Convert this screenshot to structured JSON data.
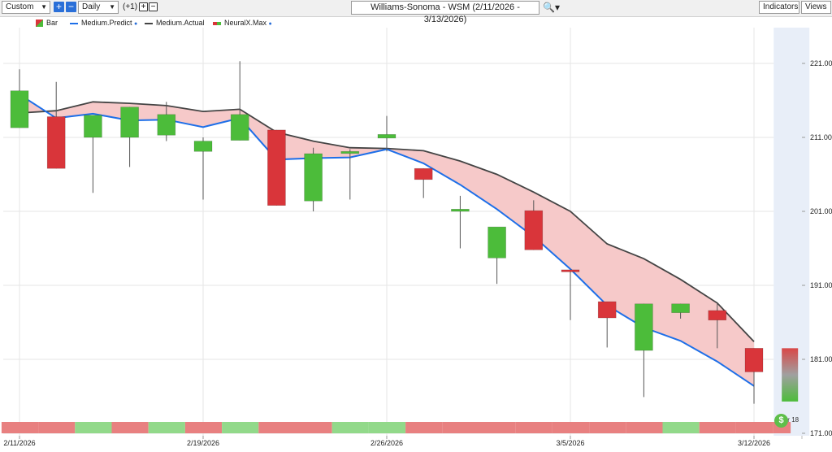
{
  "toolbar": {
    "range_select": "Custom",
    "interval_select": "Daily",
    "offset_label": "(+1)",
    "title": "Williams-Sonoma - WSM (2/11/2026 - 3/13/2026)",
    "indicators_label": "Indicators",
    "views_label": "Views"
  },
  "legend": {
    "items": [
      {
        "label": "Bar",
        "color": "#d9353a"
      },
      {
        "label": "Medium.Predict",
        "color": "#1e6fe8"
      },
      {
        "label": "Medium.Actual",
        "color": "#444444"
      },
      {
        "label": "NeuralX.Max",
        "color": "#e06060"
      }
    ]
  },
  "colors": {
    "up": "#4cbc3a",
    "down": "#d9353a",
    "predict": "#1e6fe8",
    "actual": "#444444",
    "band": "#f6c9c9",
    "up_strip": "#92d98a",
    "down_strip": "#e88080",
    "forecast_area": "#e8eef8"
  },
  "chart_data": {
    "type": "candlestick",
    "title": "Williams-Sonoma - WSM (2/11/2026 - 3/13/2026)",
    "ylim": [
      171,
      224
    ],
    "y_ticks": [
      171,
      181,
      191,
      201,
      211,
      221
    ],
    "y_tick_labels": [
      "171.00",
      "181.00",
      "191.00",
      "201.00",
      "211.00",
      "221.00"
    ],
    "x_tick_labels": [
      {
        "index": 0,
        "label": "2/11/2026"
      },
      {
        "index": 5,
        "label": "2/19/2026"
      },
      {
        "index": 10,
        "label": "2/26/2026"
      },
      {
        "index": 15,
        "label": "3/5/2026"
      },
      {
        "index": 20,
        "label": "3/12/2026"
      }
    ],
    "candles": [
      {
        "o": 212.3,
        "h": 220.2,
        "l": 212.3,
        "c": 217.3
      },
      {
        "o": 213.8,
        "h": 218.5,
        "l": 206.8,
        "c": 206.8
      },
      {
        "o": 211.0,
        "h": 214.0,
        "l": 203.5,
        "c": 214.0
      },
      {
        "o": 211.0,
        "h": 215.1,
        "l": 207.0,
        "c": 215.1
      },
      {
        "o": 211.3,
        "h": 215.8,
        "l": 210.5,
        "c": 214.1
      },
      {
        "o": 209.1,
        "h": 211.0,
        "l": 202.6,
        "c": 210.5
      },
      {
        "o": 210.6,
        "h": 221.3,
        "l": 210.6,
        "c": 214.1
      },
      {
        "o": 212.0,
        "h": 212.0,
        "l": 201.8,
        "c": 201.8
      },
      {
        "o": 202.4,
        "h": 209.6,
        "l": 201.0,
        "c": 208.8
      },
      {
        "o": 209.1,
        "h": 209.4,
        "l": 202.6,
        "c": 209.1
      },
      {
        "o": 210.9,
        "h": 213.9,
        "l": 209.1,
        "c": 211.4
      },
      {
        "o": 206.8,
        "h": 206.8,
        "l": 202.8,
        "c": 205.3
      },
      {
        "o": 201.0,
        "h": 203.1,
        "l": 196.0,
        "c": 201.3
      },
      {
        "o": 194.7,
        "h": 198.8,
        "l": 191.2,
        "c": 198.9
      },
      {
        "o": 201.1,
        "h": 202.5,
        "l": 195.8,
        "c": 195.8
      },
      {
        "o": 193.1,
        "h": 193.1,
        "l": 186.3,
        "c": 192.9
      },
      {
        "o": 188.8,
        "h": 188.8,
        "l": 182.6,
        "c": 186.6
      },
      {
        "o": 182.2,
        "h": 188.5,
        "l": 175.9,
        "c": 188.5
      },
      {
        "o": 187.3,
        "h": 188.5,
        "l": 186.5,
        "c": 188.5
      },
      {
        "o": 187.6,
        "h": 188.5,
        "l": 182.5,
        "c": 186.3
      },
      {
        "o": 182.5,
        "h": 182.5,
        "l": 175.0,
        "c": 179.3
      }
    ],
    "series": [
      {
        "name": "Medium.Predict",
        "values": [
          216.8,
          213.6,
          214.2,
          213.3,
          213.4,
          212.4,
          213.6,
          208.0,
          208.2,
          208.3,
          209.4,
          207.5,
          204.6,
          201.3,
          197.6,
          193.2,
          188.3,
          185.3,
          183.5,
          180.7,
          177.4
        ]
      },
      {
        "name": "Medium.Actual",
        "values": [
          214.3,
          214.6,
          215.8,
          215.6,
          215.3,
          214.5,
          214.8,
          211.7,
          210.5,
          209.6,
          209.5,
          209.2,
          207.8,
          206.0,
          203.6,
          201.0,
          196.6,
          194.6,
          191.8,
          188.6,
          183.4
        ]
      }
    ],
    "forecast_bar": {
      "label": "Mar 18",
      "high": 182.5,
      "low": 175.3
    },
    "direction_strip": [
      "down",
      "down",
      "up",
      "down",
      "up",
      "down",
      "up",
      "down",
      "down",
      "up",
      "up",
      "down",
      "down",
      "down",
      "down",
      "down",
      "down",
      "down",
      "up",
      "down",
      "down"
    ]
  }
}
